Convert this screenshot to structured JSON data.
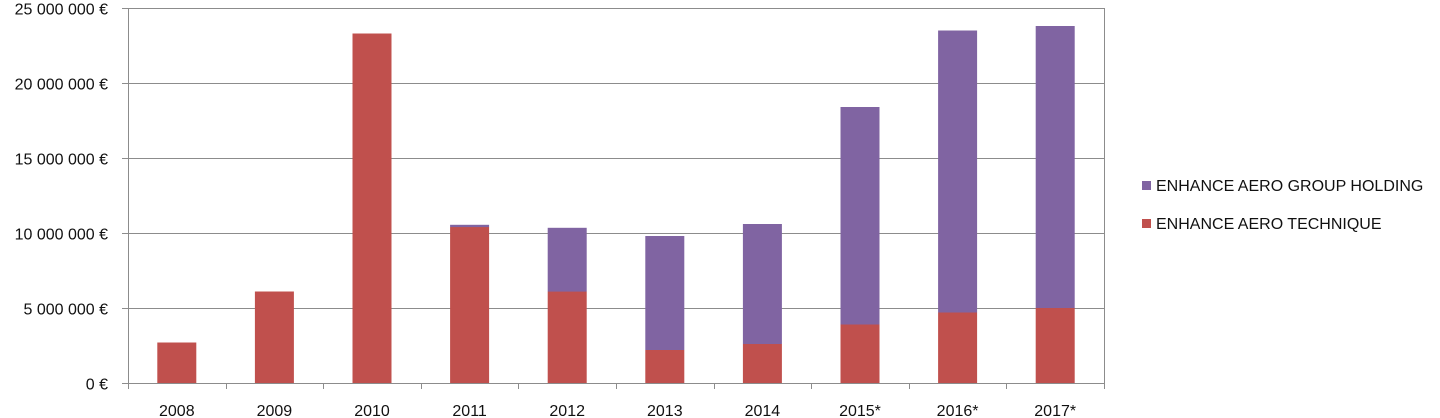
{
  "chart_data": {
    "type": "bar",
    "stacked": true,
    "categories": [
      "2008",
      "2009",
      "2010",
      "2011",
      "2012",
      "2013",
      "2014",
      "2015*",
      "2016*",
      "2017*"
    ],
    "series": [
      {
        "name": "ENHANCE AERO TECHNIQUE",
        "color": "#c0504d",
        "values": [
          2700000,
          6100000,
          23300000,
          10400000,
          6100000,
          2200000,
          2600000,
          3900000,
          4700000,
          5000000
        ]
      },
      {
        "name": "ENHANCE AERO GROUP HOLDING",
        "color": "#8064a2",
        "values": [
          0,
          0,
          0,
          150000,
          4250000,
          7600000,
          8000000,
          14500000,
          18800000,
          18800000
        ]
      }
    ],
    "yticks": [
      0,
      5000000,
      10000000,
      15000000,
      20000000,
      25000000
    ],
    "ytick_labels": [
      "0 €",
      "5 000 000 €",
      "10 000 000 €",
      "15 000 000 €",
      "20 000 000 €",
      "25 000 000 €"
    ],
    "ylim": [
      0,
      25000000
    ],
    "grid": true,
    "legend_position": "right",
    "legend_order": [
      "ENHANCE AERO GROUP HOLDING",
      "ENHANCE AERO TECHNIQUE"
    ],
    "title": "",
    "xlabel": "",
    "ylabel": ""
  }
}
